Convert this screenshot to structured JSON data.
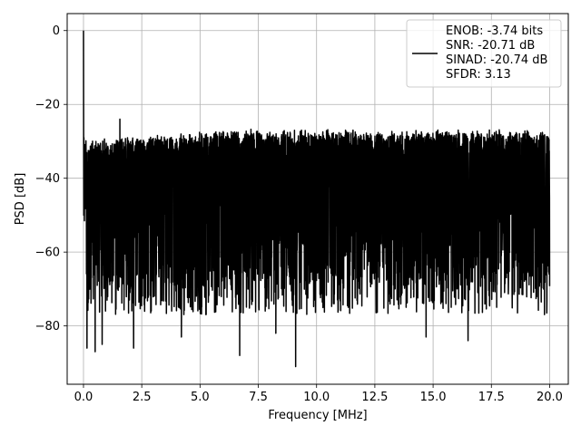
{
  "chart_data": {
    "type": "line",
    "title": "",
    "xlabel": "Frequency [MHz]",
    "ylabel": "PSD [dB]",
    "xlim": [
      -0.7,
      20.8
    ],
    "ylim": [
      -95.8,
      4.6
    ],
    "xticks": [
      0.0,
      2.5,
      5.0,
      7.5,
      10.0,
      12.5,
      15.0,
      17.5,
      20.0
    ],
    "xtick_labels": [
      "0.0",
      "2.5",
      "5.0",
      "7.5",
      "10.0",
      "12.5",
      "15.0",
      "17.5",
      "20.0"
    ],
    "yticks": [
      0,
      -20,
      -40,
      -60,
      -80
    ],
    "ytick_labels": [
      "0",
      "−20",
      "−40",
      "−60",
      "−80"
    ],
    "grid": true,
    "legend_position": "top-right",
    "line_color": "#000000",
    "legend_lines": [
      "ENOB: -3.74 bits",
      "SNR: -20.71 dB",
      "SINAD: -20.74 dB",
      "SFDR: 3.13"
    ],
    "series": [
      {
        "x_range": [
          0.0,
          20.0
        ],
        "noise_upper_envelope_db": -28,
        "noise_floor_typical_db": -70,
        "dc_peak": {
          "x": 0.0,
          "y": 0.0
        },
        "spurs": [
          {
            "x": 1.56,
            "y": -24
          }
        ],
        "deep_nulls": [
          {
            "x": 0.15,
            "y": -86
          },
          {
            "x": 0.5,
            "y": -87
          },
          {
            "x": 0.8,
            "y": -85
          },
          {
            "x": 2.15,
            "y": -86
          },
          {
            "x": 4.2,
            "y": -83
          },
          {
            "x": 6.7,
            "y": -88
          },
          {
            "x": 8.25,
            "y": -82
          },
          {
            "x": 9.1,
            "y": -91
          },
          {
            "x": 14.7,
            "y": -83
          },
          {
            "x": 16.5,
            "y": -84
          }
        ]
      }
    ]
  }
}
